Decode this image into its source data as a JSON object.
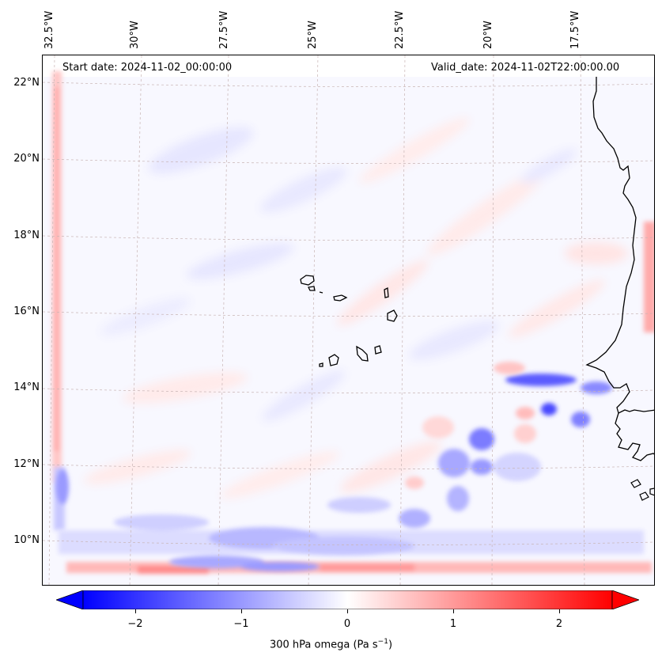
{
  "header": {
    "start_date": "Start date: 2024-11-02_00:00:00",
    "valid_date": "Valid_date: 2024-11-02T22:00:00.00"
  },
  "map": {
    "variable": "300 hPa omega",
    "longitude_labels": [
      "32.5°W",
      "30°W",
      "27.5°W",
      "25°W",
      "22.5°W",
      "20°W",
      "17.5°W"
    ],
    "latitude_labels": [
      "22°N",
      "20°N",
      "18°N",
      "16°N",
      "14°N",
      "12°N",
      "10°N"
    ],
    "lon_range": [
      -33.0,
      -15.0
    ],
    "lat_range": [
      8.8,
      22.8
    ]
  },
  "colorbar": {
    "ticks": [
      "−2",
      "−1",
      "0",
      "1",
      "2"
    ],
    "tick_values": [
      -2,
      -1,
      0,
      1,
      2
    ],
    "range": [
      -2.75,
      2.75
    ],
    "label": "300 hPa omega (Pa s",
    "label_sup": "−1",
    "label_close": ")",
    "colormap": "bwr",
    "extend": "both"
  },
  "colors": {
    "negative": "#0000ff",
    "zero": "#ffffff",
    "positive": "#ff0000",
    "coastline": "#000000",
    "grid": "#c8b4b4"
  }
}
